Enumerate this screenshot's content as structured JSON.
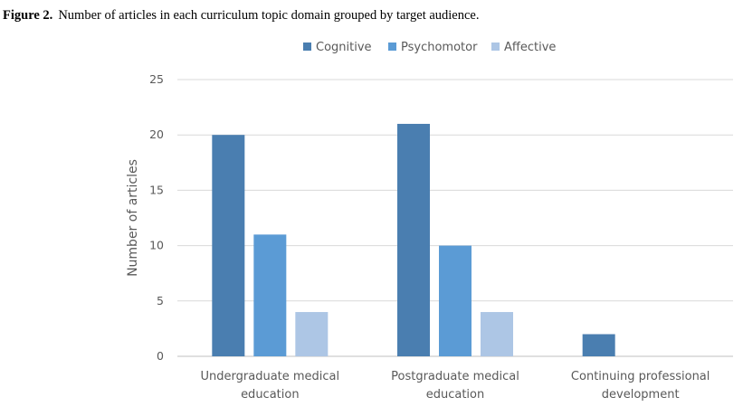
{
  "figure": {
    "label": "Figure 2.",
    "caption": "Number of articles in each curriculum topic domain grouped by target audience."
  },
  "chart_data": {
    "type": "bar",
    "title": "",
    "xlabel": "",
    "ylabel": "Number of articles",
    "ylim": [
      0,
      25
    ],
    "yticks": [
      0,
      5,
      10,
      15,
      20,
      25
    ],
    "categories": [
      [
        "Undergraduate medical",
        "education"
      ],
      [
        "Postgraduate medical",
        "education"
      ],
      [
        "Continuing professional",
        "development"
      ]
    ],
    "series": [
      {
        "name": "Cognitive",
        "color": "#4a7eb0",
        "values": [
          20,
          21,
          2
        ]
      },
      {
        "name": "Psychomotor",
        "color": "#5b9bd5",
        "values": [
          11,
          10,
          0
        ]
      },
      {
        "name": "Affective",
        "color": "#adc6e5",
        "values": [
          4,
          4,
          0
        ]
      }
    ],
    "grid": true,
    "legend_position": "top-center"
  }
}
